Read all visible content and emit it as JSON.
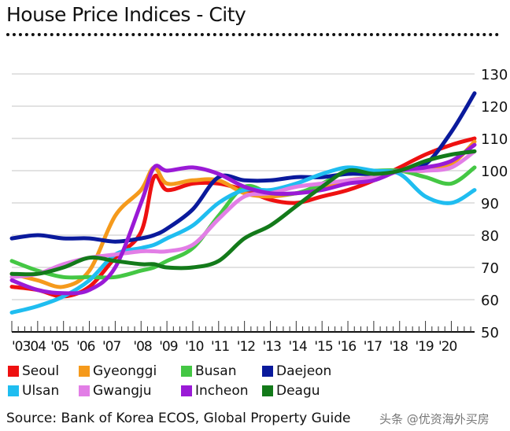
{
  "title": "House Price Indices - City",
  "source": "Source: Bank of Korea ECOS, Global Property Guide",
  "watermark": "头条 @优资海外买房",
  "chart_data": {
    "type": "line",
    "title": "House Price Indices - City",
    "xlabel": "",
    "ylabel": "",
    "xlim": [
      2003,
      2020.9
    ],
    "ylim": [
      50,
      130
    ],
    "y_ticks": [
      50,
      60,
      70,
      80,
      90,
      100,
      110,
      120,
      130
    ],
    "x_tick_labels": [
      "'03",
      "'04",
      "'05",
      "'06",
      "'07",
      "'08",
      "'09",
      "'10",
      "'11",
      "'12",
      "'13",
      "'14",
      "'15",
      "'16",
      "'17",
      "'18",
      "'19",
      "'20"
    ],
    "x_tick_years": [
      2003,
      2003.6,
      2004.5,
      2005.5,
      2006.5,
      2007.7,
      2008.7,
      2009.7,
      2010.7,
      2011.7,
      2012.7,
      2013.7,
      2014.7,
      2015.6,
      2016.6,
      2017.6,
      2018.6,
      2019.5
    ],
    "grid": true,
    "y_axis_side": "right",
    "legend_position": "bottom",
    "x": [
      2003,
      2004,
      2005,
      2006,
      2007,
      2008,
      2008.5,
      2009,
      2010,
      2011,
      2012,
      2013,
      2014,
      2015,
      2016,
      2017,
      2018,
      2019,
      2020,
      2020.9
    ],
    "series": [
      {
        "name": "Seoul",
        "color": "#ee1111",
        "values": [
          64,
          63,
          61,
          64,
          73,
          81,
          98,
          94,
          96,
          96,
          94,
          91,
          90,
          92,
          94,
          97,
          101,
          105,
          108,
          110
        ]
      },
      {
        "name": "Gyeonggi",
        "color": "#f59a1c",
        "values": [
          68,
          66,
          64,
          69,
          86,
          94,
          101,
          96,
          97,
          97,
          93,
          92,
          93,
          95,
          97,
          98,
          100,
          100,
          102,
          109
        ]
      },
      {
        "name": "Busan",
        "color": "#44c744",
        "values": [
          72,
          69,
          67,
          67,
          67,
          69,
          70,
          72,
          76,
          86,
          95,
          93,
          93,
          96,
          100,
          100,
          100,
          98,
          96,
          101
        ]
      },
      {
        "name": "Daejeon",
        "color": "#0a1a9c",
        "values": [
          79,
          80,
          79,
          79,
          78,
          79,
          80,
          82,
          88,
          98,
          97,
          97,
          98,
          98,
          99,
          99,
          100,
          102,
          112,
          124
        ]
      },
      {
        "name": "Ulsan",
        "color": "#1fbdf0",
        "values": [
          56,
          58,
          61,
          66,
          74,
          76,
          77,
          79,
          83,
          90,
          94,
          94,
          96,
          99,
          101,
          100,
          99,
          92,
          90,
          94
        ]
      },
      {
        "name": "Gwangju",
        "color": "#e27ee6",
        "values": [
          67,
          68,
          71,
          73,
          74,
          75,
          75,
          75,
          77,
          85,
          92,
          93,
          95,
          96,
          97,
          98,
          100,
          100,
          101,
          106
        ]
      },
      {
        "name": "Incheon",
        "color": "#9a1ad6",
        "values": [
          66,
          63,
          62,
          63,
          70,
          90,
          101,
          100,
          101,
          99,
          95,
          93,
          93,
          94,
          96,
          97,
          100,
          101,
          103,
          108
        ]
      },
      {
        "name": "Deagu",
        "color": "#137a1a",
        "values": [
          68,
          68,
          70,
          73,
          72,
          71,
          71,
          70,
          70,
          72,
          79,
          83,
          89,
          95,
          100,
          99,
          100,
          103,
          105,
          106
        ]
      }
    ]
  },
  "legend": [
    {
      "label": "Seoul",
      "color": "#ee1111"
    },
    {
      "label": "Gyeonggi",
      "color": "#f59a1c"
    },
    {
      "label": "Busan",
      "color": "#44c744"
    },
    {
      "label": "Daejeon",
      "color": "#0a1a9c"
    },
    {
      "label": "Ulsan",
      "color": "#1fbdf0"
    },
    {
      "label": "Gwangju",
      "color": "#e27ee6"
    },
    {
      "label": "Incheon",
      "color": "#9a1ad6"
    },
    {
      "label": "Deagu",
      "color": "#137a1a"
    }
  ]
}
